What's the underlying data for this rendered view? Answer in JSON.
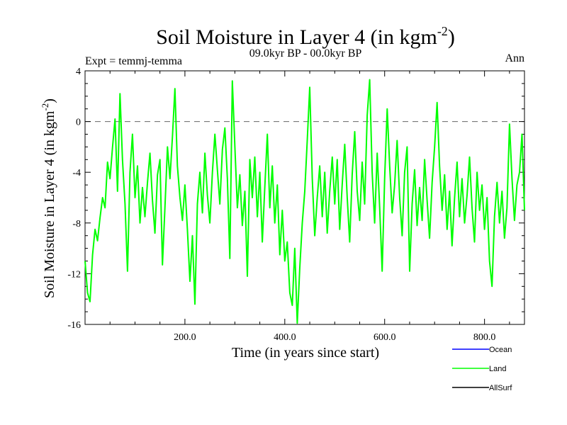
{
  "chart_data": {
    "type": "line",
    "title": "Soil Moisture in Layer 4 (in kgm",
    "title_sup": "-2",
    "title_close": ")",
    "subtitle_left": "Expt = temmj-temma",
    "subtitle_center": "09.0kyr BP - 00.0kyr BP",
    "subtitle_right": "Ann",
    "xlabel": "Time (in years since start)",
    "ylabel": "Soil Moisture in Layer 4 (in kgm",
    "ylabel_sup": "-2",
    "ylabel_close": ")",
    "xlim": [
      0,
      880
    ],
    "ylim": [
      -16,
      4
    ],
    "xticks": [
      200,
      400,
      600,
      800
    ],
    "xtick_labels": [
      "200.0",
      "400.0",
      "600.0",
      "800.0"
    ],
    "yticks": [
      4,
      0,
      -4,
      -8,
      -12,
      -16
    ],
    "ytick_labels": [
      "4",
      "0",
      "-4",
      "-8",
      "-12",
      "-16"
    ],
    "reference_line": 0,
    "legend_position": "bottom-right",
    "series": [
      {
        "name": "Ocean",
        "color": "#0000ff",
        "values": []
      },
      {
        "name": "Land",
        "color": "#00ff00",
        "values": [
          {
            "x": 0,
            "y": -11.0
          },
          {
            "x": 5,
            "y": -13.5
          },
          {
            "x": 10,
            "y": -14.2
          },
          {
            "x": 15,
            "y": -10.5
          },
          {
            "x": 20,
            "y": -8.5
          },
          {
            "x": 25,
            "y": -9.4
          },
          {
            "x": 30,
            "y": -7.6
          },
          {
            "x": 35,
            "y": -6.0
          },
          {
            "x": 40,
            "y": -6.8
          },
          {
            "x": 45,
            "y": -3.2
          },
          {
            "x": 50,
            "y": -4.5
          },
          {
            "x": 55,
            "y": -2.0
          },
          {
            "x": 60,
            "y": 0.2
          },
          {
            "x": 65,
            "y": -5.5
          },
          {
            "x": 70,
            "y": 2.2
          },
          {
            "x": 75,
            "y": -3.0
          },
          {
            "x": 80,
            "y": -6.5
          },
          {
            "x": 85,
            "y": -11.8
          },
          {
            "x": 90,
            "y": -4.0
          },
          {
            "x": 95,
            "y": -1.0
          },
          {
            "x": 100,
            "y": -6.0
          },
          {
            "x": 105,
            "y": -3.5
          },
          {
            "x": 110,
            "y": -8.0
          },
          {
            "x": 115,
            "y": -5.2
          },
          {
            "x": 120,
            "y": -7.5
          },
          {
            "x": 125,
            "y": -4.8
          },
          {
            "x": 130,
            "y": -2.5
          },
          {
            "x": 135,
            "y": -6.2
          },
          {
            "x": 140,
            "y": -8.8
          },
          {
            "x": 145,
            "y": -4.2
          },
          {
            "x": 150,
            "y": -3.0
          },
          {
            "x": 155,
            "y": -11.3
          },
          {
            "x": 160,
            "y": -6.8
          },
          {
            "x": 165,
            "y": -2.0
          },
          {
            "x": 170,
            "y": -4.5
          },
          {
            "x": 175,
            "y": -1.2
          },
          {
            "x": 180,
            "y": 2.6
          },
          {
            "x": 185,
            "y": -3.5
          },
          {
            "x": 190,
            "y": -6.0
          },
          {
            "x": 195,
            "y": -7.8
          },
          {
            "x": 200,
            "y": -5.0
          },
          {
            "x": 205,
            "y": -8.5
          },
          {
            "x": 210,
            "y": -12.6
          },
          {
            "x": 215,
            "y": -9.0
          },
          {
            "x": 220,
            "y": -14.4
          },
          {
            "x": 225,
            "y": -6.5
          },
          {
            "x": 230,
            "y": -4.0
          },
          {
            "x": 235,
            "y": -7.2
          },
          {
            "x": 240,
            "y": -2.5
          },
          {
            "x": 245,
            "y": -5.8
          },
          {
            "x": 250,
            "y": -8.0
          },
          {
            "x": 255,
            "y": -4.0
          },
          {
            "x": 260,
            "y": -1.0
          },
          {
            "x": 265,
            "y": -3.8
          },
          {
            "x": 270,
            "y": -6.5
          },
          {
            "x": 275,
            "y": -2.2
          },
          {
            "x": 280,
            "y": -0.5
          },
          {
            "x": 285,
            "y": -4.5
          },
          {
            "x": 290,
            "y": -10.8
          },
          {
            "x": 295,
            "y": 3.2
          },
          {
            "x": 300,
            "y": -2.0
          },
          {
            "x": 305,
            "y": -6.8
          },
          {
            "x": 310,
            "y": -4.2
          },
          {
            "x": 315,
            "y": -8.2
          },
          {
            "x": 320,
            "y": -5.5
          },
          {
            "x": 325,
            "y": -12.2
          },
          {
            "x": 330,
            "y": -3.0
          },
          {
            "x": 335,
            "y": -6.0
          },
          {
            "x": 340,
            "y": -2.8
          },
          {
            "x": 345,
            "y": -7.5
          },
          {
            "x": 350,
            "y": -4.0
          },
          {
            "x": 355,
            "y": -9.5
          },
          {
            "x": 360,
            "y": -5.2
          },
          {
            "x": 365,
            "y": -1.0
          },
          {
            "x": 370,
            "y": -6.8
          },
          {
            "x": 375,
            "y": -3.5
          },
          {
            "x": 380,
            "y": -8.0
          },
          {
            "x": 385,
            "y": -5.0
          },
          {
            "x": 390,
            "y": -10.5
          },
          {
            "x": 395,
            "y": -7.0
          },
          {
            "x": 400,
            "y": -11.0
          },
          {
            "x": 405,
            "y": -9.5
          },
          {
            "x": 410,
            "y": -13.5
          },
          {
            "x": 415,
            "y": -14.5
          },
          {
            "x": 420,
            "y": -10.0
          },
          {
            "x": 425,
            "y": -15.9
          },
          {
            "x": 430,
            "y": -11.5
          },
          {
            "x": 435,
            "y": -8.0
          },
          {
            "x": 440,
            "y": -5.5
          },
          {
            "x": 445,
            "y": -1.5
          },
          {
            "x": 450,
            "y": 2.7
          },
          {
            "x": 455,
            "y": -4.5
          },
          {
            "x": 460,
            "y": -9.0
          },
          {
            "x": 465,
            "y": -6.0
          },
          {
            "x": 470,
            "y": -3.5
          },
          {
            "x": 475,
            "y": -7.5
          },
          {
            "x": 480,
            "y": -4.0
          },
          {
            "x": 485,
            "y": -8.8
          },
          {
            "x": 490,
            "y": -5.5
          },
          {
            "x": 495,
            "y": -2.8
          },
          {
            "x": 500,
            "y": -6.5
          },
          {
            "x": 505,
            "y": -3.0
          },
          {
            "x": 510,
            "y": -8.5
          },
          {
            "x": 515,
            "y": -5.0
          },
          {
            "x": 520,
            "y": -1.8
          },
          {
            "x": 525,
            "y": -6.0
          },
          {
            "x": 530,
            "y": -9.5
          },
          {
            "x": 535,
            "y": -4.2
          },
          {
            "x": 540,
            "y": -0.8
          },
          {
            "x": 545,
            "y": -5.5
          },
          {
            "x": 550,
            "y": -7.8
          },
          {
            "x": 555,
            "y": -3.2
          },
          {
            "x": 560,
            "y": -6.5
          },
          {
            "x": 565,
            "y": 0.5
          },
          {
            "x": 570,
            "y": 3.3
          },
          {
            "x": 575,
            "y": -4.0
          },
          {
            "x": 580,
            "y": -8.0
          },
          {
            "x": 585,
            "y": -2.5
          },
          {
            "x": 590,
            "y": -6.8
          },
          {
            "x": 595,
            "y": -11.8
          },
          {
            "x": 600,
            "y": -4.5
          },
          {
            "x": 605,
            "y": 1.0
          },
          {
            "x": 610,
            "y": -3.5
          },
          {
            "x": 615,
            "y": -7.2
          },
          {
            "x": 620,
            "y": -5.0
          },
          {
            "x": 625,
            "y": -1.5
          },
          {
            "x": 630,
            "y": -6.0
          },
          {
            "x": 635,
            "y": -9.0
          },
          {
            "x": 640,
            "y": -4.0
          },
          {
            "x": 645,
            "y": -2.0
          },
          {
            "x": 650,
            "y": -11.8
          },
          {
            "x": 655,
            "y": -6.5
          },
          {
            "x": 660,
            "y": -3.8
          },
          {
            "x": 665,
            "y": -8.2
          },
          {
            "x": 670,
            "y": -5.2
          },
          {
            "x": 675,
            "y": -7.8
          },
          {
            "x": 680,
            "y": -3.0
          },
          {
            "x": 685,
            "y": -6.2
          },
          {
            "x": 690,
            "y": -9.2
          },
          {
            "x": 695,
            "y": -4.8
          },
          {
            "x": 700,
            "y": -2.0
          },
          {
            "x": 705,
            "y": 1.5
          },
          {
            "x": 710,
            "y": -3.5
          },
          {
            "x": 715,
            "y": -7.0
          },
          {
            "x": 720,
            "y": -4.2
          },
          {
            "x": 725,
            "y": -8.5
          },
          {
            "x": 730,
            "y": -5.5
          },
          {
            "x": 735,
            "y": -9.8
          },
          {
            "x": 740,
            "y": -6.0
          },
          {
            "x": 745,
            "y": -3.2
          },
          {
            "x": 750,
            "y": -7.5
          },
          {
            "x": 755,
            "y": -4.5
          },
          {
            "x": 760,
            "y": -8.0
          },
          {
            "x": 765,
            "y": -5.8
          },
          {
            "x": 770,
            "y": -2.8
          },
          {
            "x": 775,
            "y": -6.8
          },
          {
            "x": 780,
            "y": -9.5
          },
          {
            "x": 785,
            "y": -4.0
          },
          {
            "x": 790,
            "y": -7.0
          },
          {
            "x": 795,
            "y": -5.0
          },
          {
            "x": 800,
            "y": -8.5
          },
          {
            "x": 805,
            "y": -6.0
          },
          {
            "x": 810,
            "y": -11.0
          },
          {
            "x": 815,
            "y": -13.0
          },
          {
            "x": 820,
            "y": -7.5
          },
          {
            "x": 825,
            "y": -4.8
          },
          {
            "x": 830,
            "y": -8.0
          },
          {
            "x": 835,
            "y": -5.5
          },
          {
            "x": 840,
            "y": -9.2
          },
          {
            "x": 845,
            "y": -6.8
          },
          {
            "x": 850,
            "y": -0.2
          },
          {
            "x": 855,
            "y": -4.5
          },
          {
            "x": 860,
            "y": -7.8
          },
          {
            "x": 865,
            "y": -5.0
          },
          {
            "x": 870,
            "y": -4.0
          },
          {
            "x": 875,
            "y": -1.0
          },
          {
            "x": 880,
            "y": -7.0
          }
        ]
      },
      {
        "name": "AllSurf",
        "color": "#000000",
        "values": []
      }
    ]
  }
}
